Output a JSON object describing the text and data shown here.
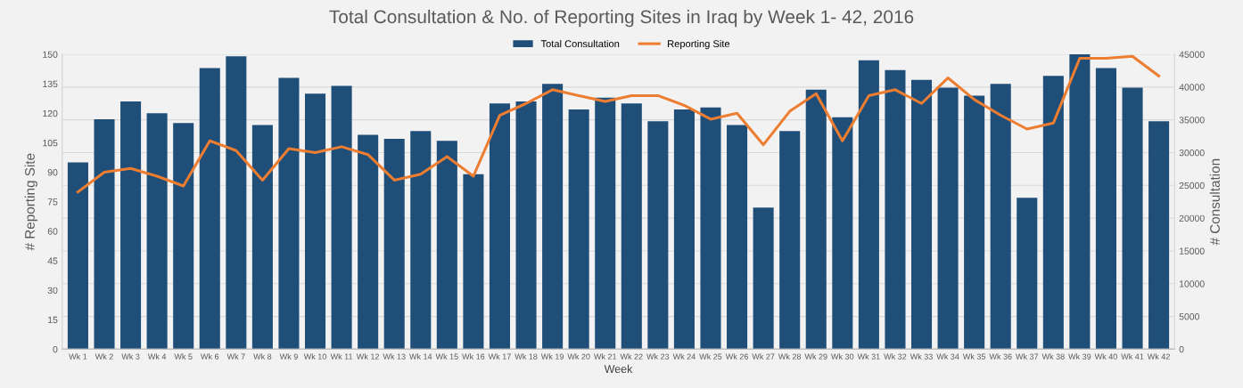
{
  "chart_data": {
    "type": "bar",
    "title": "Total Consultation & No. of Reporting Sites in Iraq by Week 1- 42, 2016",
    "xlabel": "Week",
    "ylabel": "# Reporting Site",
    "y2label": "# Consultation",
    "categories": [
      "Wk 1",
      "Wk 2",
      "Wk 3",
      "Wk 4",
      "Wk 5",
      "Wk 6",
      "Wk 7",
      "Wk 8",
      "Wk 9",
      "Wk 10",
      "Wk 11",
      "Wk 12",
      "Wk 13",
      "Wk 14",
      "Wk 15",
      "Wk 16",
      "Wk 17",
      "Wk 18",
      "Wk 19",
      "Wk 20",
      "Wk 21",
      "Wk 22",
      "Wk 23",
      "Wk 24",
      "Wk 25",
      "Wk 26",
      "Wk 27",
      "Wk 28",
      "Wk 29",
      "Wk 30",
      "Wk 31",
      "Wk 32",
      "Wk 33",
      "Wk 34",
      "Wk 35",
      "Wk 36",
      "Wk 37",
      "Wk 38",
      "Wk 39",
      "Wk 40",
      "Wk 41",
      "Wk 42"
    ],
    "series": [
      {
        "name": "Total Consultation",
        "axis": "y2",
        "color": "#1f4e79",
        "values": [
          28500,
          35100,
          37800,
          36000,
          34500,
          42900,
          44700,
          34200,
          41400,
          39000,
          40200,
          32700,
          32100,
          33300,
          31800,
          26700,
          37500,
          37800,
          40500,
          36600,
          38400,
          37500,
          34800,
          36600,
          36900,
          34200,
          21600,
          33300,
          39600,
          35400,
          44100,
          42600,
          41100,
          39900,
          38700,
          40500,
          23100,
          41700,
          45000,
          42900,
          39900,
          34800
        ]
      },
      {
        "name": "Reporting Site",
        "type": "line",
        "axis": "y",
        "color": "#ed7d31",
        "values": [
          80,
          90,
          92,
          88,
          83,
          106,
          101,
          86,
          102,
          100,
          103,
          99,
          86,
          89,
          98,
          88,
          119,
          125,
          132,
          129,
          126,
          129,
          129,
          124,
          117,
          120,
          104,
          121,
          130,
          106,
          129,
          132,
          125,
          138,
          127,
          119,
          112,
          115,
          148,
          148,
          149,
          139
        ]
      }
    ],
    "ylim": [
      0,
      150
    ],
    "yticks": [
      0,
      15,
      30,
      45,
      60,
      75,
      90,
      105,
      120,
      135,
      150
    ],
    "y2lim": [
      0,
      45000
    ],
    "y2ticks": [
      0,
      5000,
      10000,
      15000,
      20000,
      25000,
      30000,
      35000,
      40000,
      45000
    ],
    "grid": "y",
    "legend": "top",
    "marker": "none",
    "line_style": "solid"
  }
}
